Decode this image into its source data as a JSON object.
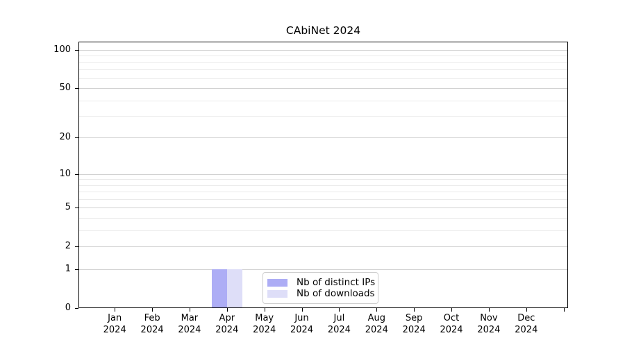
{
  "chart_data": {
    "type": "bar",
    "title": "CAbiNet 2024",
    "x_tick_labels": [
      [
        "Jan",
        "2024"
      ],
      [
        "Feb",
        "2024"
      ],
      [
        "Mar",
        "2024"
      ],
      [
        "Apr",
        "2024"
      ],
      [
        "May",
        "2024"
      ],
      [
        "Jun",
        "2024"
      ],
      [
        "Jul",
        "2024"
      ],
      [
        "Aug",
        "2024"
      ],
      [
        "Sep",
        "2024"
      ],
      [
        "Oct",
        "2024"
      ],
      [
        "Nov",
        "2024"
      ],
      [
        "Dec",
        "2024"
      ]
    ],
    "series": [
      {
        "name": "Nb of distinct IPs",
        "color": "#adadf5",
        "values": [
          0,
          0,
          0,
          1,
          0,
          0,
          0,
          0,
          0,
          0,
          0,
          0
        ]
      },
      {
        "name": "Nb of downloads",
        "color": "#dedef8",
        "values": [
          0,
          0,
          0,
          1,
          0,
          0,
          0,
          0,
          0,
          0,
          0,
          0
        ]
      }
    ],
    "y_scale": "log1p",
    "ylim": [
      0,
      116
    ],
    "y_major_ticks": [
      0,
      1,
      2,
      5,
      10,
      20,
      50,
      100
    ],
    "y_minor_gridlines": [
      3,
      4,
      6,
      7,
      8,
      9,
      30,
      40,
      60,
      70,
      80,
      90
    ],
    "grid": "horizontal-only",
    "grid_major_color": "#d2d2d2",
    "grid_minor_color": "#eaeaea",
    "legend_position": "inside-bottom-center",
    "x_unlabeled_trailing_tick": true,
    "bar_value_at_apr": 1
  }
}
